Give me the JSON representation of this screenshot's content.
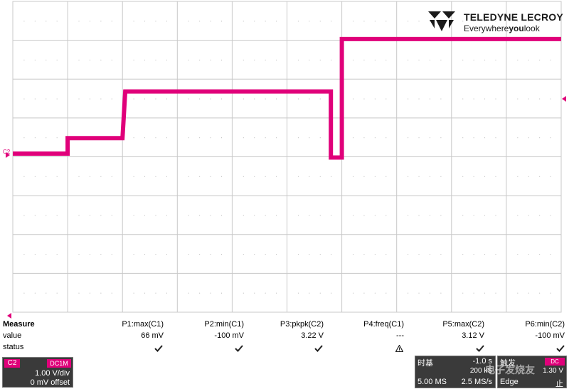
{
  "brand": {
    "name": "TELEDYNE LECROY",
    "tagline_pre": "Everywhere",
    "tagline_bold": "you",
    "tagline_post": "look",
    "color": "#1b1b1b"
  },
  "trace": {
    "channel_label": "C2",
    "color": "#e0007a",
    "grid_color": "#c8c8c8",
    "levels_mv": [
      {
        "t_div": 0.0,
        "v_mv": 0
      },
      {
        "t_div": 1.0,
        "v_mv": 0
      },
      {
        "t_div": 1.0,
        "v_mv": 400
      },
      {
        "t_div": 2.0,
        "v_mv": 400
      },
      {
        "t_div": 2.05,
        "v_mv": 1600
      },
      {
        "t_div": 5.8,
        "v_mv": 1600
      },
      {
        "t_div": 5.8,
        "v_mv": -100
      },
      {
        "t_div": 6.0,
        "v_mv": -100
      },
      {
        "t_div": 6.0,
        "v_mv": 2950
      },
      {
        "t_div": 10.0,
        "v_mv": 2950
      }
    ]
  },
  "measure": {
    "header": "Measure",
    "row_value": "value",
    "row_status": "status",
    "params": [
      {
        "name": "P1:max(C1)",
        "value": "66 mV",
        "status": "check"
      },
      {
        "name": "P2:min(C1)",
        "value": "-100 mV",
        "status": "check"
      },
      {
        "name": "P3:pkpk(C2)",
        "value": "3.22 V",
        "status": "check"
      },
      {
        "name": "P4:freq(C1)",
        "value": "---",
        "status": "warn"
      },
      {
        "name": "P5:max(C2)",
        "value": "3.12 V",
        "status": "check"
      },
      {
        "name": "P6:min(C2)",
        "value": "-100 mV",
        "status": "check"
      }
    ]
  },
  "channel": {
    "tag": "C2",
    "coupling": "DC1M",
    "vdiv": "1.00 V/div",
    "offset": "0 mV offset"
  },
  "timebase": {
    "title": "时基",
    "delay": "-1.0 s",
    "points": "200 kS",
    "div": "5.00 MS",
    "rate": "2.5 MS/s"
  },
  "trigger": {
    "title": "触发",
    "coupling": "DC",
    "level": "1.30 V",
    "type": "Edge",
    "mode": "止"
  },
  "watermark": "电子发烧友"
}
